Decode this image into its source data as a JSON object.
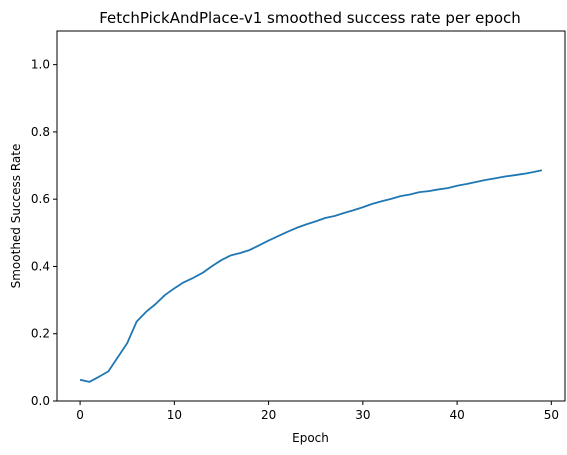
{
  "chart_data": {
    "type": "line",
    "title": "FetchPickAndPlace-v1 smoothed success rate per epoch",
    "xlabel": "Epoch",
    "ylabel": "Smoothed Success Rate",
    "xlim": [
      -2.45,
      51.45
    ],
    "ylim": [
      0.0,
      1.1
    ],
    "grid": false,
    "xticks": [
      0,
      10,
      20,
      30,
      40,
      50
    ],
    "xtick_labels": [
      "0",
      "10",
      "20",
      "30",
      "40",
      "50"
    ],
    "yticks": [
      0.0,
      0.2,
      0.4,
      0.6,
      0.8,
      1.0
    ],
    "ytick_labels": [
      "0.0",
      "0.2",
      "0.4",
      "0.6",
      "0.8",
      "1.0"
    ],
    "colors": {
      "line": "#1f77b4",
      "axes": "#000000"
    },
    "series": [
      {
        "x": [
          0,
          1,
          2,
          3,
          4,
          5,
          6,
          7,
          8,
          9,
          10,
          11,
          12,
          13,
          14,
          15,
          16,
          17,
          18,
          19,
          20,
          21,
          22,
          23,
          24,
          25,
          26,
          27,
          28,
          29,
          30,
          31,
          32,
          33,
          34,
          35,
          36,
          37,
          38,
          39,
          40,
          41,
          42,
          43,
          44,
          45,
          46,
          47,
          48,
          49
        ],
        "values": [
          0.063,
          0.057,
          0.072,
          0.088,
          0.13,
          0.172,
          0.236,
          0.265,
          0.288,
          0.315,
          0.335,
          0.353,
          0.366,
          0.381,
          0.401,
          0.419,
          0.433,
          0.44,
          0.449,
          0.463,
          0.477,
          0.49,
          0.503,
          0.515,
          0.525,
          0.534,
          0.544,
          0.55,
          0.559,
          0.567,
          0.576,
          0.586,
          0.594,
          0.601,
          0.609,
          0.614,
          0.621,
          0.624,
          0.629,
          0.633,
          0.64,
          0.645,
          0.651,
          0.657,
          0.662,
          0.667,
          0.671,
          0.675,
          0.68,
          0.686
        ]
      }
    ]
  }
}
